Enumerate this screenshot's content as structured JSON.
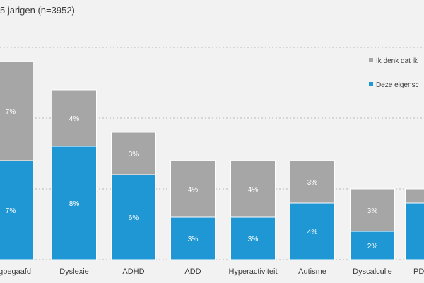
{
  "chart_data": {
    "type": "bar",
    "title": "5 jarigen (n=3952)",
    "stacked": true,
    "categories": [
      "ogbegaafd",
      "Dyslexie",
      "ADHD",
      "ADD",
      "Hyperactiviteit",
      "Autisme",
      "Dyscalculie",
      "PD"
    ],
    "series": [
      {
        "name": "Deze eigensc",
        "color": "#1f97d4",
        "values": [
          7,
          8,
          6,
          3,
          3,
          4,
          2,
          4
        ],
        "labels": [
          "7%",
          "8%",
          "6%",
          "3%",
          "3%",
          "4%",
          "2%",
          ""
        ]
      },
      {
        "name": "Ik denk dat ik",
        "color": "#a6a6a6",
        "values": [
          7,
          4,
          3,
          4,
          4,
          3,
          3,
          1
        ],
        "labels": [
          "7%",
          "4%",
          "3%",
          "4%",
          "4%",
          "3%",
          "3%",
          ""
        ]
      }
    ],
    "ylim": [
      0,
      15
    ],
    "grid": true,
    "legend": "top-right"
  }
}
